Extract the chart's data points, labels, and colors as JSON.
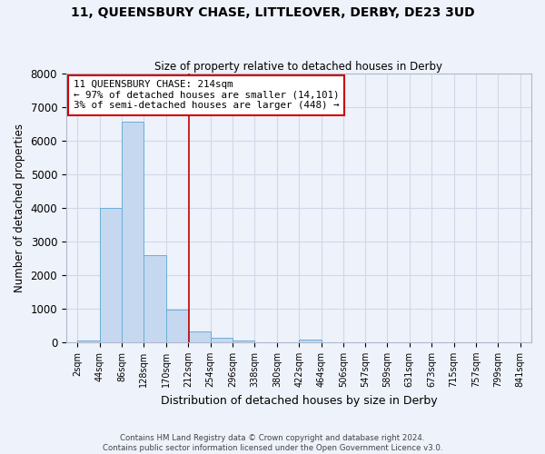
{
  "title": "11, QUEENSBURY CHASE, LITTLEOVER, DERBY, DE23 3UD",
  "subtitle": "Size of property relative to detached houses in Derby",
  "xlabel": "Distribution of detached houses by size in Derby",
  "ylabel": "Number of detached properties",
  "bin_labels": [
    "2sqm",
    "44sqm",
    "86sqm",
    "128sqm",
    "170sqm",
    "212sqm",
    "254sqm",
    "296sqm",
    "338sqm",
    "380sqm",
    "422sqm",
    "464sqm",
    "506sqm",
    "547sqm",
    "589sqm",
    "631sqm",
    "673sqm",
    "715sqm",
    "757sqm",
    "799sqm",
    "841sqm"
  ],
  "bin_edges": [
    2,
    44,
    86,
    128,
    170,
    212,
    254,
    296,
    338,
    380,
    422,
    464,
    506,
    547,
    589,
    631,
    673,
    715,
    757,
    799,
    841
  ],
  "bar_heights": [
    50,
    4000,
    6550,
    2600,
    970,
    330,
    130,
    50,
    0,
    0,
    70,
    0,
    0,
    0,
    0,
    0,
    0,
    0,
    0,
    0
  ],
  "bar_color": "#c5d8f0",
  "bar_edge_color": "#6baed6",
  "property_value": 214,
  "vline_color": "#cc0000",
  "annotation_line1": "11 QUEENSBURY CHASE: 214sqm",
  "annotation_line2": "← 97% of detached houses are smaller (14,101)",
  "annotation_line3": "3% of semi-detached houses are larger (448) →",
  "annotation_box_color": "#ffffff",
  "annotation_box_edge_color": "#cc0000",
  "ylim": [
    0,
    8000
  ],
  "yticks": [
    0,
    1000,
    2000,
    3000,
    4000,
    5000,
    6000,
    7000,
    8000
  ],
  "grid_color": "#d0d8e8",
  "background_color": "#eef2fa",
  "footer_line1": "Contains HM Land Registry data © Crown copyright and database right 2024.",
  "footer_line2": "Contains public sector information licensed under the Open Government Licence v3.0."
}
